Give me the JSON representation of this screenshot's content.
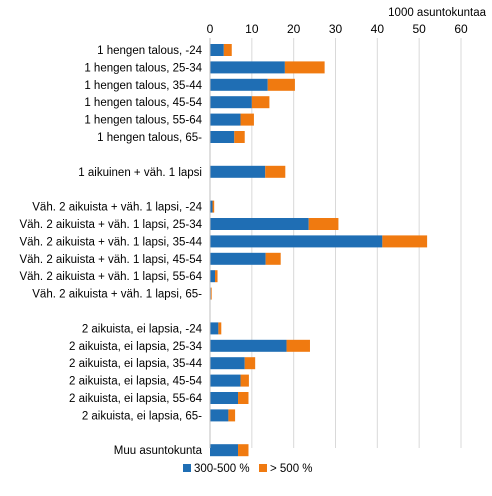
{
  "chart_data": {
    "type": "bar",
    "orientation": "horizontal",
    "stacked": true,
    "unit_label": "1000 asuntokuntaa",
    "xlim": [
      0,
      60
    ],
    "x_ticks": [
      0,
      10,
      20,
      30,
      40,
      50,
      60
    ],
    "x_axis_position": "top",
    "grid": true,
    "legend_position": "bottom",
    "categories": [
      "1 hengen talous, -24",
      "1 hengen talous, 25-34",
      "1 hengen talous, 35-44",
      "1 hengen talous, 45-54",
      "1 hengen talous, 55-64",
      "1 hengen talous, 65-",
      "",
      "1 aikuinen + väh. 1 lapsi",
      "",
      "Väh. 2 aikuista + väh. 1 lapsi, -24",
      "Väh. 2 aikuista + väh. 1 lapsi, 25-34",
      "Väh. 2 aikuista + väh. 1 lapsi, 35-44",
      "Väh. 2 aikuista + väh. 1 lapsi, 45-54",
      "Väh. 2 aikuista + väh. 1 lapsi, 55-64",
      "Väh. 2 aikuista + väh. 1 lapsi, 65-",
      "",
      "2 aikuista, ei lapsia, -24",
      "2 aikuista, ei lapsia, 25-34",
      "2 aikuista, ei lapsia, 35-44",
      "2 aikuista, ei lapsia, 45-54",
      "2 aikuista, ei lapsia, 55-64",
      "2 aikuista, ei lapsia, 65-",
      "",
      "Muu asuntokunta"
    ],
    "series": [
      {
        "name": "300-500 %",
        "color": "#1f6eb4",
        "values": [
          3.3,
          17.9,
          13.8,
          10.0,
          7.3,
          5.8,
          null,
          13.2,
          null,
          0.6,
          23.6,
          41.2,
          13.3,
          1.2,
          0.2,
          null,
          2.0,
          18.3,
          8.3,
          7.3,
          6.7,
          4.4,
          null,
          6.7
        ]
      },
      {
        "name": "> 500 %",
        "color": "#f07a10",
        "values": [
          1.9,
          9.5,
          6.5,
          4.2,
          3.2,
          2.5,
          null,
          4.8,
          null,
          0.4,
          7.1,
          10.7,
          3.6,
          0.6,
          0.2,
          null,
          0.7,
          5.6,
          2.5,
          2.0,
          2.5,
          1.6,
          null,
          2.5
        ]
      }
    ]
  }
}
